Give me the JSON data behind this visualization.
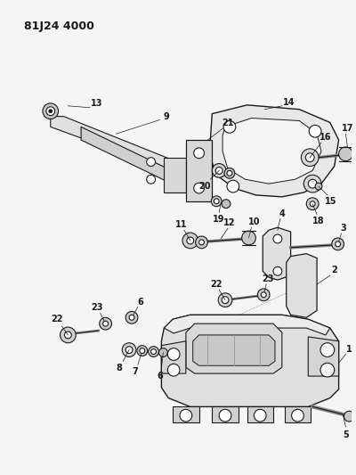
{
  "title": "81J24 4000",
  "bg_color": "#f5f5f5",
  "line_color": "#1a1a1a",
  "title_fontsize": 9,
  "label_fontsize": 7,
  "fig_width": 4.0,
  "fig_height": 5.33,
  "dpi": 100
}
